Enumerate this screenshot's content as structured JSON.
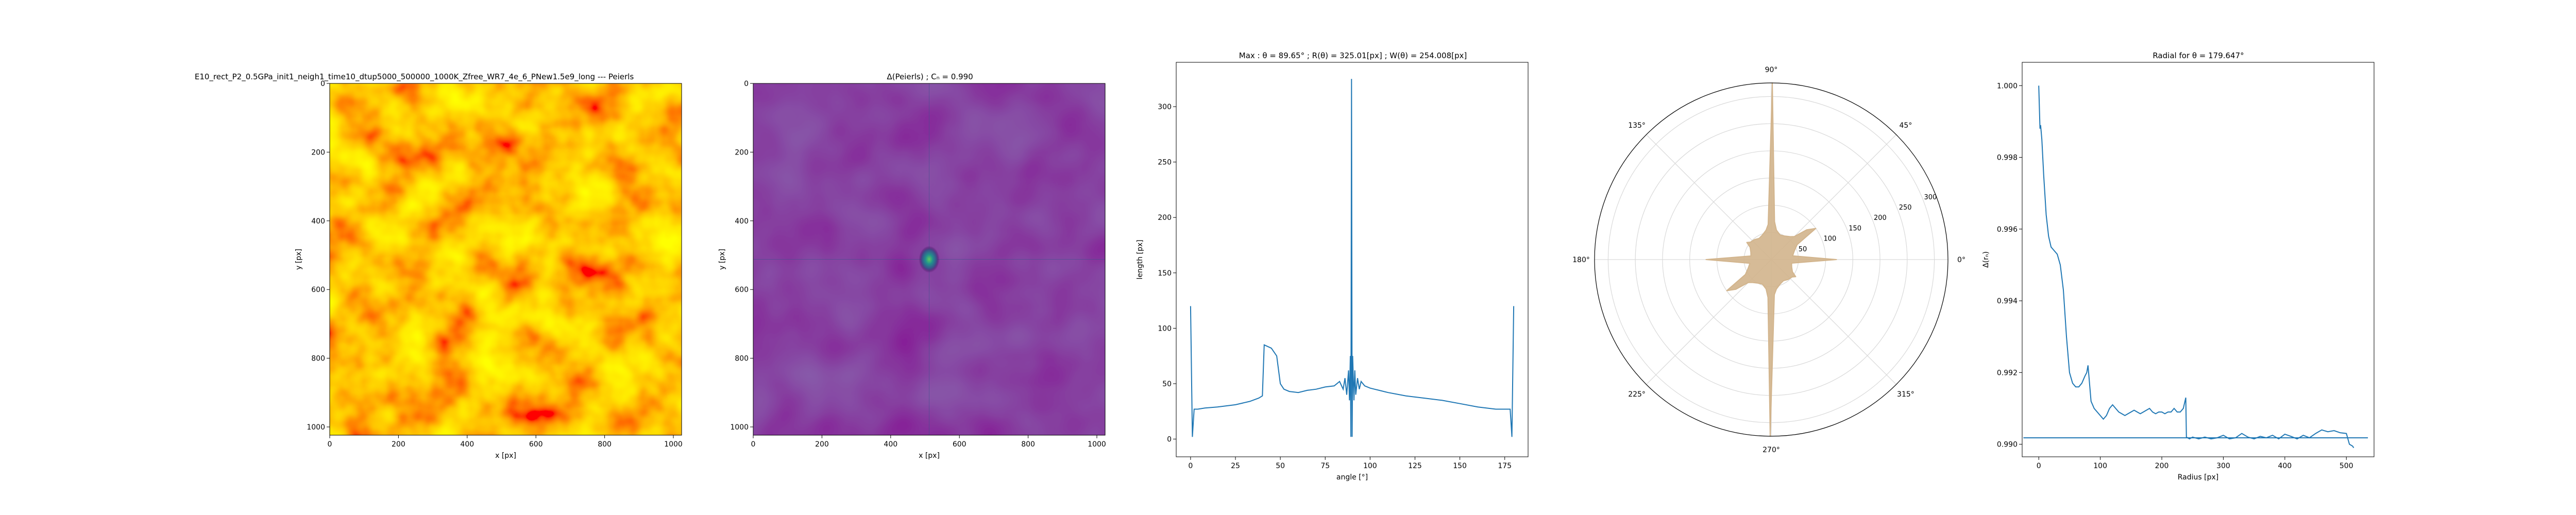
{
  "figure": {
    "panel1_title": "E10_rect_P2_0.5GPa_init1_neigh1_time10_dtup5000_500000_1000K_Zfree_WR7_4e_6_PNew1.5e9_long --- Peierls",
    "panel2_title": "Δ(Peierls) ; Cₙ = 0.990",
    "panel3_title": "Max : θ = 89.65° ; R(θ) = 325.01[px] ; W(θ) = 254.008[px]",
    "panel5_title": "Radial for θ = 179.647°",
    "colors": {
      "line": "#1f77b4",
      "polar_fill": "#d2b48c",
      "grid": "#d9d9d9"
    }
  },
  "chart_data": [
    {
      "type": "heatmap",
      "title": "E10_rect_P2_0.5GPa_init1_neigh1_time10_dtup5000_500000_1000K_Zfree_WR7_4e_6_PNew1.5e9_long --- Peierls",
      "xlabel": "x [px]",
      "ylabel": "y [px]",
      "xlim": [
        0,
        1024
      ],
      "ylim": [
        1024,
        0
      ],
      "xticks": [
        "0",
        "200",
        "400",
        "600",
        "800",
        "1000"
      ],
      "yticks": [
        "0",
        "200",
        "400",
        "600",
        "800",
        "1000"
      ],
      "colormap": "autumn",
      "colors": [
        "#ff0000",
        "#ff8000",
        "#ffff00"
      ]
    },
    {
      "type": "heatmap",
      "title": "Δ(Peierls) ; Cₙ = 0.990",
      "xlabel": "x [px]",
      "ylabel": "y [px]",
      "xlim": [
        0,
        1024
      ],
      "ylim": [
        1024,
        0
      ],
      "xticks": [
        "0",
        "200",
        "400",
        "600",
        "800",
        "1000"
      ],
      "yticks": [
        "0",
        "200",
        "400",
        "600",
        "800",
        "1000"
      ],
      "colormap": "viridis",
      "peak": {
        "x": 512,
        "y": 512
      },
      "colors": [
        "#440154",
        "#3b528b",
        "#21918c",
        "#5ec962"
      ]
    },
    {
      "type": "line",
      "title": "Max : θ = 89.65° ; R(θ) = 325.01[px] ; W(θ) = 254.008[px]",
      "xlabel": "angle [°]",
      "ylabel": "length [px]",
      "xlim": [
        -8,
        188
      ],
      "ylim": [
        -16,
        340
      ],
      "xticks": [
        0,
        25,
        50,
        75,
        100,
        125,
        150,
        175
      ],
      "yticks": [
        0,
        50,
        100,
        150,
        200,
        250,
        300
      ],
      "series": [
        {
          "x": [
            0,
            1,
            2,
            4,
            8,
            15,
            25,
            33,
            38,
            40,
            41,
            45,
            48,
            50,
            52,
            55,
            60,
            65,
            70,
            75,
            80,
            83,
            85,
            86,
            87,
            88,
            88.5,
            89,
            89.3,
            89.65,
            90,
            90.3,
            91,
            91.5,
            92,
            93,
            94,
            95,
            97,
            100,
            105,
            110,
            120,
            130,
            140,
            150,
            160,
            170,
            175,
            178,
            179,
            180
          ],
          "y": [
            120,
            2,
            27,
            27,
            28,
            29,
            31,
            34,
            37,
            39,
            85,
            82,
            75,
            50,
            45,
            43,
            42,
            44,
            45,
            47,
            48,
            52,
            45,
            55,
            40,
            62,
            35,
            75,
            2,
            325,
            2,
            75,
            35,
            62,
            40,
            55,
            45,
            52,
            48,
            46,
            44,
            42,
            39,
            37,
            35,
            32,
            29,
            27,
            27,
            27,
            2,
            120
          ],
          "color": "#1f77b4"
        }
      ]
    },
    {
      "type": "polar",
      "theta_ticks": [
        "0°",
        "45°",
        "90°",
        "135°",
        "180°",
        "225°",
        "270°",
        "315°"
      ],
      "r_ticks": [
        50,
        100,
        150,
        200,
        250,
        300
      ],
      "r_max": 325,
      "series": [
        {
          "theta_deg": [
            0,
            10,
            20,
            30,
            35,
            40,
            45,
            50,
            60,
            70,
            80,
            85,
            89.65,
            95,
            100,
            110,
            120,
            130,
            140,
            145,
            150,
            160,
            170,
            180
          ],
          "r": [
            120,
            40,
            45,
            55,
            100,
            85,
            60,
            55,
            50,
            48,
            55,
            70,
            325,
            65,
            55,
            48,
            45,
            48,
            50,
            55,
            45,
            40,
            38,
            120
          ],
          "symmetric": true,
          "color": "#d2b48c"
        }
      ]
    },
    {
      "type": "line",
      "title": "Radial for θ = 179.647°",
      "xlabel": "Radius [px]",
      "ylabel": "Δ(rₙ)",
      "xlim": [
        -27,
        545
      ],
      "ylim": [
        0.98965,
        1.00065
      ],
      "xticks": [
        0,
        100,
        200,
        300,
        400,
        500
      ],
      "yticks": [
        "0.990",
        "0.992",
        "0.994",
        "0.996",
        "0.998",
        "1.000"
      ],
      "series": [
        {
          "x": [
            0,
            2,
            3,
            5,
            8,
            12,
            16,
            20,
            25,
            30,
            35,
            40,
            45,
            50,
            55,
            60,
            65,
            70,
            75,
            78,
            80,
            85,
            90,
            95,
            100,
            105,
            110,
            115,
            120,
            125,
            130,
            135,
            140,
            145,
            150,
            155,
            160,
            165,
            170,
            175,
            180,
            185,
            190,
            195,
            200,
            205,
            210,
            215,
            220,
            225,
            230,
            235,
            239,
            240,
            245,
            250,
            260,
            270,
            280,
            290,
            300,
            310,
            320,
            330,
            340,
            350,
            360,
            370,
            380,
            390,
            400,
            410,
            420,
            430,
            440,
            450,
            460,
            470,
            480,
            490,
            500,
            505,
            510,
            512
          ],
          "y": [
            1.0,
            0.9988,
            0.9989,
            0.9985,
            0.9975,
            0.9964,
            0.9958,
            0.9955,
            0.9954,
            0.9953,
            0.995,
            0.9943,
            0.993,
            0.992,
            0.9917,
            0.9916,
            0.9916,
            0.9917,
            0.9919,
            0.992,
            0.9922,
            0.9912,
            0.991,
            0.9909,
            0.9908,
            0.9907,
            0.9908,
            0.991,
            0.9911,
            0.991,
            0.9909,
            0.99085,
            0.9908,
            0.99085,
            0.9909,
            0.99095,
            0.9909,
            0.99085,
            0.9909,
            0.99095,
            0.991,
            0.9909,
            0.99085,
            0.9909,
            0.9909,
            0.99085,
            0.9909,
            0.9909,
            0.991,
            0.9909,
            0.9909,
            0.991,
            0.9913,
            0.9902,
            0.99015,
            0.9902,
            0.99015,
            0.9902,
            0.99015,
            0.99018,
            0.99025,
            0.99015,
            0.99018,
            0.9903,
            0.9902,
            0.99015,
            0.99022,
            0.99018,
            0.99025,
            0.99015,
            0.99028,
            0.99022,
            0.99015,
            0.99025,
            0.99018,
            0.9903,
            0.9904,
            0.99035,
            0.99038,
            0.99032,
            0.9903,
            0.99,
            0.98995,
            0.9899
          ],
          "color": "#1f77b4"
        },
        {
          "x": [
            -25,
            535
          ],
          "y": [
            0.99018,
            0.99018
          ],
          "color": "#1f77b4"
        }
      ]
    }
  ]
}
